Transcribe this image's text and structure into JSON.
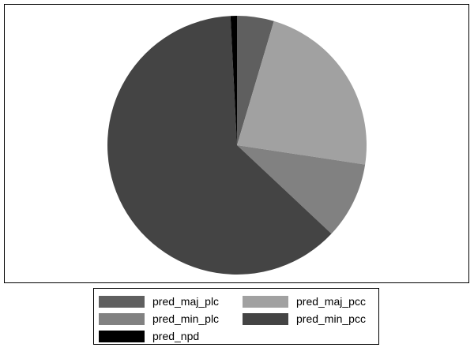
{
  "chart_data": {
    "type": "pie",
    "title": "",
    "start": "12 o'clock",
    "direction": "clockwise",
    "slices": [
      {
        "name": "pred_maj_plc",
        "value": 4.6,
        "color": "#5f5f5f"
      },
      {
        "name": "pred_maj_pcc",
        "value": 22.8,
        "color": "#a1a1a1"
      },
      {
        "name": "pred_min_plc",
        "value": 9.6,
        "color": "#818181"
      },
      {
        "name": "pred_min_pcc",
        "value": 62.2,
        "color": "#444444"
      },
      {
        "name": "pred_npd",
        "value": 0.8,
        "color": "#000000"
      }
    ],
    "legend": {
      "placement": "bottom",
      "columns": 2
    }
  }
}
